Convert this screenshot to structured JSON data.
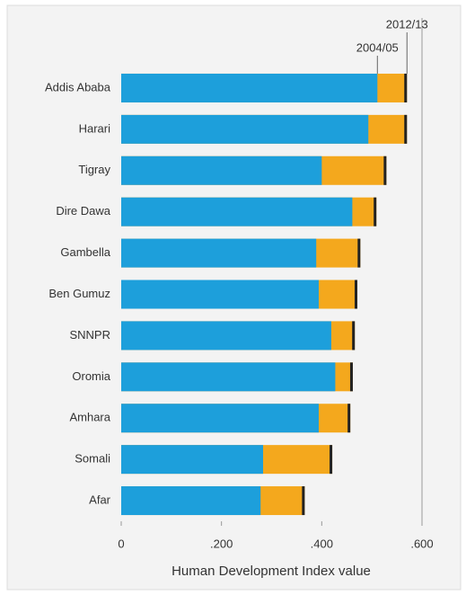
{
  "chart_data": {
    "type": "bar",
    "orientation": "horizontal",
    "x_label": "Human Development Index value",
    "categories": [
      "Addis Ababa",
      "Harari",
      "Tigray",
      "Dire Dawa",
      "Gambella",
      "Ben Gumuz",
      "SNNPR",
      "Oromia",
      "Amhara",
      "Somali",
      "Afar"
    ],
    "series": [
      {
        "name": "2012/13",
        "color": "#f4a81d",
        "values": [
          0.57,
          0.57,
          0.529,
          0.509,
          0.477,
          0.471,
          0.466,
          0.462,
          0.457,
          0.421,
          0.366
        ]
      },
      {
        "name": "2004/05",
        "color": "#1d9fdb",
        "values": [
          0.511,
          0.493,
          0.4,
          0.461,
          0.389,
          0.394,
          0.419,
          0.427,
          0.394,
          0.283,
          0.278
        ]
      }
    ],
    "xlim": [
      0,
      0.6
    ],
    "xticks": [
      0,
      {
        "value": 0.2,
        "label": ".200"
      },
      {
        "value": 0.4,
        "label": ".400"
      },
      {
        "value": 0.6,
        "label": ".600"
      }
    ]
  }
}
